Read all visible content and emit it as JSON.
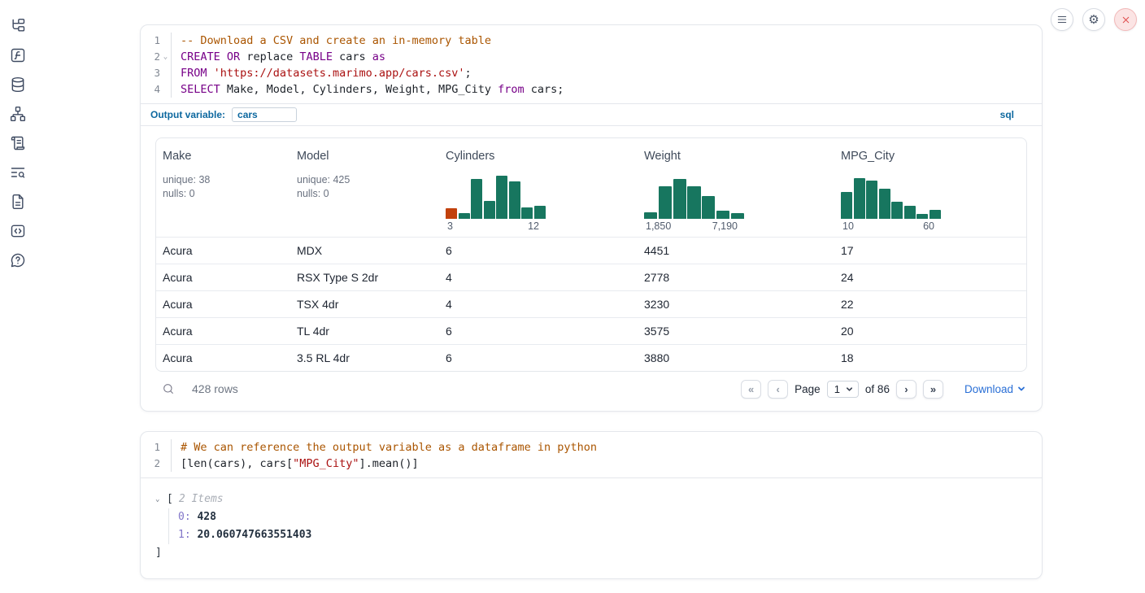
{
  "sidebar": {
    "items": [
      {
        "icon": "file-explorer-icon"
      },
      {
        "icon": "variables-icon"
      },
      {
        "icon": "datasources-icon"
      },
      {
        "icon": "dependency-graph-icon"
      },
      {
        "icon": "scratchpad-icon"
      },
      {
        "icon": "logs-icon"
      },
      {
        "icon": "documentation-icon"
      },
      {
        "icon": "snippets-icon"
      },
      {
        "icon": "help-icon"
      }
    ]
  },
  "topbar": {
    "buttons": [
      "menu",
      "settings",
      "shutdown"
    ]
  },
  "sql_cell": {
    "language_badge": "sql",
    "output_variable_label": "Output variable:",
    "output_variable_value": "cars",
    "code": [
      {
        "num": "1",
        "fold": false,
        "tokens": [
          {
            "t": "-- Download a CSV and create an in-memory table",
            "c": "com"
          }
        ]
      },
      {
        "num": "2",
        "fold": true,
        "tokens": [
          {
            "t": "CREATE",
            "c": "kw"
          },
          {
            "t": " ",
            "c": "pl"
          },
          {
            "t": "OR",
            "c": "kw"
          },
          {
            "t": " replace ",
            "c": "pl"
          },
          {
            "t": "TABLE",
            "c": "kw"
          },
          {
            "t": " cars ",
            "c": "pl"
          },
          {
            "t": "as",
            "c": "kw"
          }
        ]
      },
      {
        "num": "3",
        "fold": false,
        "tokens": [
          {
            "t": "FROM",
            "c": "kw"
          },
          {
            "t": " ",
            "c": "pl"
          },
          {
            "t": "'https://datasets.marimo.app/cars.csv'",
            "c": "str"
          },
          {
            "t": ";",
            "c": "pl"
          }
        ]
      },
      {
        "num": "4",
        "fold": false,
        "tokens": [
          {
            "t": "SELECT",
            "c": "kw"
          },
          {
            "t": " Make, Model, Cylinders, Weight, MPG_City ",
            "c": "pl"
          },
          {
            "t": "from",
            "c": "kw"
          },
          {
            "t": " cars;",
            "c": "pl"
          }
        ]
      }
    ]
  },
  "table": {
    "columns": [
      {
        "label": "Make",
        "stat1": "unique: 38",
        "stat2": "nulls: 0"
      },
      {
        "label": "Model",
        "stat1": "unique: 425",
        "stat2": "nulls: 0"
      },
      {
        "label": "Cylinders",
        "hist": {
          "min": "3",
          "max": "12",
          "bars": [
            {
              "h": 0.24,
              "c": "orange"
            },
            {
              "h": 0.13
            },
            {
              "h": 0.93
            },
            {
              "h": 0.42
            },
            {
              "h": 1.0
            },
            {
              "h": 0.86
            },
            {
              "h": 0.26
            },
            {
              "h": 0.31
            }
          ]
        }
      },
      {
        "label": "Weight",
        "hist": {
          "min": "1,850",
          "max": "7,190",
          "bars": [
            {
              "h": 0.15
            },
            {
              "h": 0.76
            },
            {
              "h": 0.93
            },
            {
              "h": 0.76
            },
            {
              "h": 0.52
            },
            {
              "h": 0.18
            },
            {
              "h": 0.14
            }
          ]
        }
      },
      {
        "label": "MPG_City",
        "hist": {
          "min": "10",
          "max": "60",
          "bars": [
            {
              "h": 0.63
            },
            {
              "h": 0.95
            },
            {
              "h": 0.88
            },
            {
              "h": 0.7
            },
            {
              "h": 0.4
            },
            {
              "h": 0.3
            },
            {
              "h": 0.12
            },
            {
              "h": 0.2
            }
          ]
        }
      }
    ],
    "rows": [
      [
        "Acura",
        "MDX",
        "6",
        "4451",
        "17"
      ],
      [
        "Acura",
        "RSX Type S 2dr",
        "4",
        "2778",
        "24"
      ],
      [
        "Acura",
        "TSX 4dr",
        "4",
        "3230",
        "22"
      ],
      [
        "Acura",
        "TL 4dr",
        "6",
        "3575",
        "20"
      ],
      [
        "Acura",
        "3.5 RL 4dr",
        "6",
        "3880",
        "18"
      ]
    ],
    "footer": {
      "row_count": "428 rows",
      "first_page": "«",
      "prev_page": "‹",
      "page_label": "Page",
      "page_value": "1",
      "page_total": "of 86",
      "next_page": "›",
      "last_page": "»",
      "download_label": "Download"
    }
  },
  "python_cell": {
    "code": [
      {
        "num": "1",
        "fold": false,
        "tokens": [
          {
            "t": "# We can reference the output variable as a dataframe in python",
            "c": "com"
          }
        ]
      },
      {
        "num": "2",
        "fold": false,
        "tokens": [
          {
            "t": "[len(cars), cars[",
            "c": "pl"
          },
          {
            "t": "\"MPG_City\"",
            "c": "str"
          },
          {
            "t": "].mean()]",
            "c": "pl"
          }
        ]
      }
    ],
    "output": {
      "open_bracket": "[",
      "items_label": "2 Items",
      "items": [
        {
          "key": "0:",
          "value": "428"
        },
        {
          "key": "1:",
          "value": "20.060747663551403"
        }
      ],
      "close_bracket": "]"
    }
  }
}
